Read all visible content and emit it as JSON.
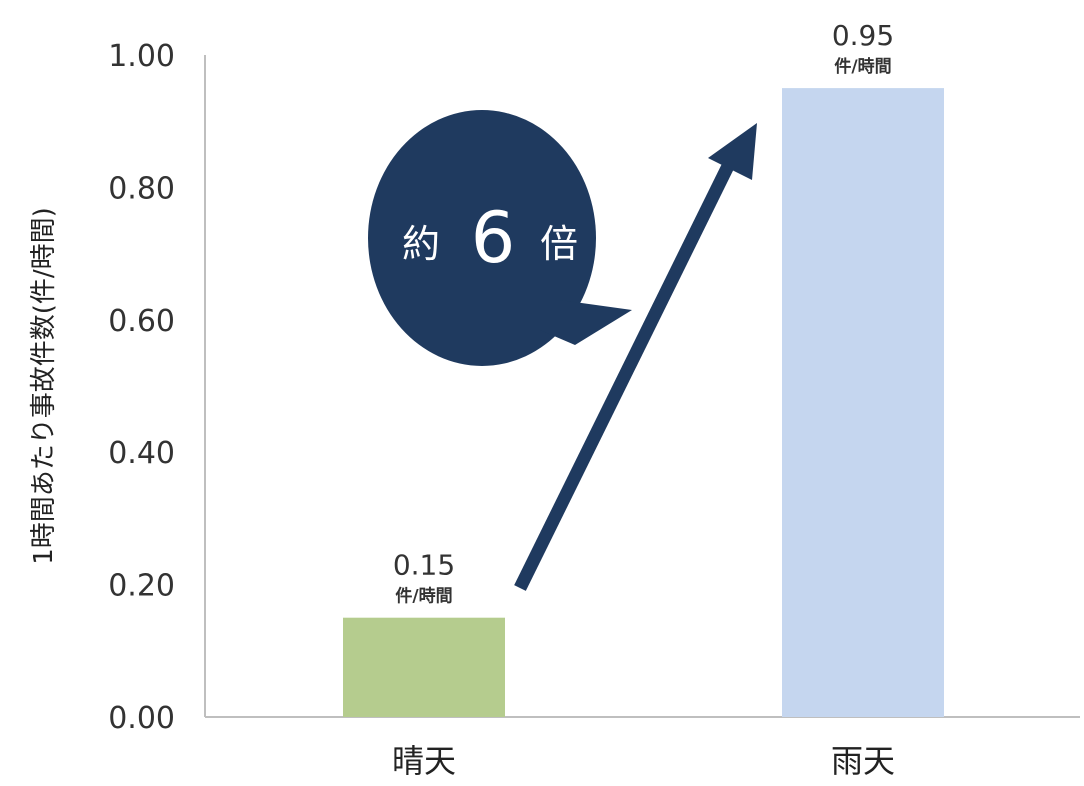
{
  "chart_data": {
    "type": "bar",
    "ylabel": "1時間あたり事故件数(件/時間)",
    "categories": [
      "晴天",
      "雨天"
    ],
    "values": [
      0.15,
      0.95
    ],
    "value_labels": [
      "0.15",
      "0.95"
    ],
    "value_unit": "件/時間",
    "ylim": [
      0,
      1.0
    ],
    "yticks": [
      "0.00",
      "0.20",
      "0.40",
      "0.60",
      "0.80",
      "1.00"
    ],
    "ytick_values": [
      0,
      0.2,
      0.4,
      0.6,
      0.8,
      1.0
    ],
    "grid": false,
    "colors": [
      "#b5cc8e",
      "#c5d6ef"
    ],
    "annotation": {
      "prefix": "約",
      "number": "6",
      "suffix": "倍",
      "bubble_color": "#1f3a5f",
      "arrow_color": "#1f3a5f"
    }
  }
}
